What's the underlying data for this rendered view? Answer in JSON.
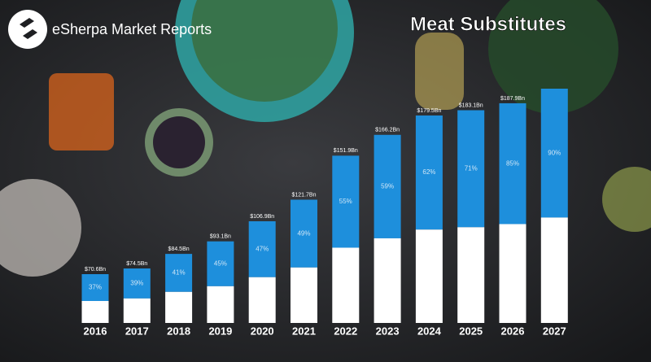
{
  "brand": "eSherpa Market Reports",
  "chart_data": {
    "type": "bar",
    "title": "Meat Substitutes",
    "categories": [
      "2016",
      "2017",
      "2018",
      "2019",
      "2020",
      "2021",
      "2022",
      "2023",
      "2024",
      "2025",
      "2026",
      "2027"
    ],
    "values": [
      70.6,
      74.5,
      84.5,
      93.1,
      106.9,
      121.7,
      151.9,
      166.2,
      179.5,
      183.1,
      187.9,
      197.9
    ],
    "value_labels": [
      "$70.6Bn",
      "$74.5Bn",
      "$84.5Bn",
      "$93.1Bn",
      "$106.9Bn",
      "$121.7Bn",
      "$151.9Bn",
      "$166.2Bn",
      "$179.5Bn",
      "$183.1Bn",
      "$187.9Bn",
      null
    ],
    "shares": [
      37,
      39,
      41,
      45,
      47,
      49,
      55,
      59,
      62,
      71,
      85,
      90
    ],
    "share_labels": [
      "37%",
      "39%",
      "41%",
      "45%",
      "47%",
      "49%",
      "55%",
      "59%",
      "62%",
      "71%",
      "85%",
      "90%"
    ],
    "color": "#1e8fdc",
    "base_color": "#ffffff"
  }
}
